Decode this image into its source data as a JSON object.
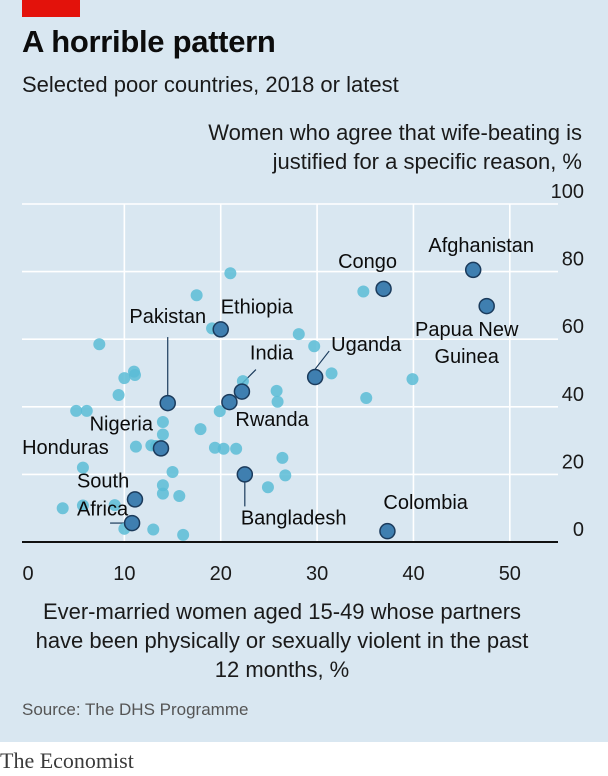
{
  "header": {
    "title": "A horrible pattern",
    "subtitle": "Selected poor countries, 2018 or latest"
  },
  "source": "Source: The DHS Programme",
  "brand": "The Economist",
  "colors": {
    "background": "#d9e7f1",
    "brand_red": "#e3120b",
    "dot_plain": "#5bbcd6",
    "dot_highlight": "#3f7fb0",
    "dot_outline": "#1b3b5c",
    "grid": "#ffffff",
    "axis": "#111111"
  },
  "chart_data": {
    "type": "scatter",
    "title": "A horrible pattern",
    "subtitle": "Selected poor countries, 2018 or latest",
    "xlabel": "Ever-married women aged 15-49 whose partners have been physically or sexually violent in the past 12 months, %",
    "ylabel": "Women who agree that wife-beating is justified for a specific reason, %",
    "xlim": [
      0,
      55
    ],
    "ylim": [
      0,
      100
    ],
    "x_ticks": [
      "0",
      "10",
      "20",
      "30",
      "40",
      "50"
    ],
    "x_tick_values": [
      0,
      10,
      20,
      30,
      40,
      50
    ],
    "y_ticks": [
      "0",
      "20",
      "40",
      "60",
      "80",
      "100"
    ],
    "y_tick_values": [
      0,
      20,
      40,
      60,
      80,
      100
    ],
    "grid": true,
    "labelled_points": [
      {
        "label": "Afghanistan",
        "x": 46.2,
        "y": 80.5
      },
      {
        "label": "Congo",
        "x": 36.9,
        "y": 74.9
      },
      {
        "label": "Papua New Guinea",
        "x": 47.6,
        "y": 69.8
      },
      {
        "label": "Ethiopia",
        "x": 20.0,
        "y": 62.9
      },
      {
        "label": "Uganda",
        "x": 29.8,
        "y": 48.8
      },
      {
        "label": "India",
        "x": 22.2,
        "y": 44.5
      },
      {
        "label": "Pakistan",
        "x": 14.5,
        "y": 41.1
      },
      {
        "label": "Rwanda",
        "x": 20.9,
        "y": 41.4
      },
      {
        "label": "Nigeria",
        "x": 13.8,
        "y": 27.7
      },
      {
        "label": "Bangladesh",
        "x": 22.5,
        "y": 20.0
      },
      {
        "label": "South Africa",
        "x": 11.1,
        "y": 12.6
      },
      {
        "label": "Honduras",
        "x": 10.8,
        "y": 5.6
      },
      {
        "label": "Colombia",
        "x": 37.3,
        "y": 3.2
      }
    ],
    "other_points": [
      {
        "x": 21.0,
        "y": 79.5
      },
      {
        "x": 17.5,
        "y": 73.0
      },
      {
        "x": 34.8,
        "y": 74.1
      },
      {
        "x": 19.1,
        "y": 63.2
      },
      {
        "x": 28.1,
        "y": 61.5
      },
      {
        "x": 7.4,
        "y": 58.5
      },
      {
        "x": 29.7,
        "y": 57.9
      },
      {
        "x": 31.5,
        "y": 49.9
      },
      {
        "x": 39.9,
        "y": 48.2
      },
      {
        "x": 11.0,
        "y": 50.4
      },
      {
        "x": 11.1,
        "y": 49.4
      },
      {
        "x": 10.0,
        "y": 48.5
      },
      {
        "x": 22.3,
        "y": 47.6
      },
      {
        "x": 25.8,
        "y": 44.7
      },
      {
        "x": 25.9,
        "y": 41.5
      },
      {
        "x": 35.1,
        "y": 42.6
      },
      {
        "x": 9.4,
        "y": 43.5
      },
      {
        "x": 19.9,
        "y": 38.7
      },
      {
        "x": 5.0,
        "y": 38.8
      },
      {
        "x": 6.1,
        "y": 38.8
      },
      {
        "x": 14.0,
        "y": 35.5
      },
      {
        "x": 14.0,
        "y": 31.8
      },
      {
        "x": 17.9,
        "y": 33.4
      },
      {
        "x": 11.2,
        "y": 28.2
      },
      {
        "x": 12.8,
        "y": 28.6
      },
      {
        "x": 13.3,
        "y": 28.4
      },
      {
        "x": 19.4,
        "y": 27.9
      },
      {
        "x": 20.3,
        "y": 27.6
      },
      {
        "x": 21.6,
        "y": 27.6
      },
      {
        "x": 26.4,
        "y": 24.9
      },
      {
        "x": 5.7,
        "y": 22.0
      },
      {
        "x": 15.0,
        "y": 20.7
      },
      {
        "x": 26.7,
        "y": 19.7
      },
      {
        "x": 24.9,
        "y": 16.2
      },
      {
        "x": 14.0,
        "y": 16.8
      },
      {
        "x": 14.0,
        "y": 14.3
      },
      {
        "x": 15.7,
        "y": 13.6
      },
      {
        "x": 9.0,
        "y": 10.9
      },
      {
        "x": 3.6,
        "y": 10.0
      },
      {
        "x": 5.7,
        "y": 10.8
      },
      {
        "x": 10.0,
        "y": 3.9
      },
      {
        "x": 13.0,
        "y": 3.7
      },
      {
        "x": 16.1,
        "y": 2.1
      }
    ]
  }
}
